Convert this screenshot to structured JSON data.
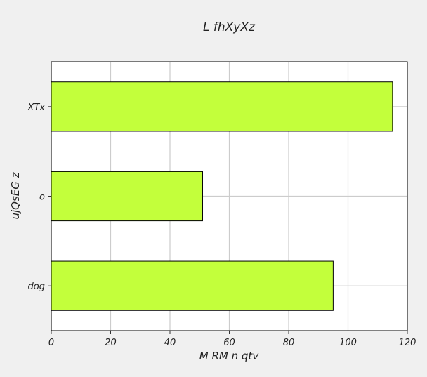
{
  "chart_data": {
    "type": "bar",
    "orientation": "horizontal",
    "title": "L fhXyXz",
    "xlabel": "M RM n qtv",
    "ylabel": "ujQsEG z",
    "categories": [
      "dog",
      "o",
      "XTx"
    ],
    "values": [
      95,
      51,
      115
    ],
    "xlim": [
      0,
      120
    ],
    "xticks": [
      "0",
      "20",
      "40",
      "60",
      "80",
      "100",
      "120"
    ],
    "grid": true,
    "bar_color": "#c3ff3b",
    "bar_edge_color": "#000000"
  }
}
